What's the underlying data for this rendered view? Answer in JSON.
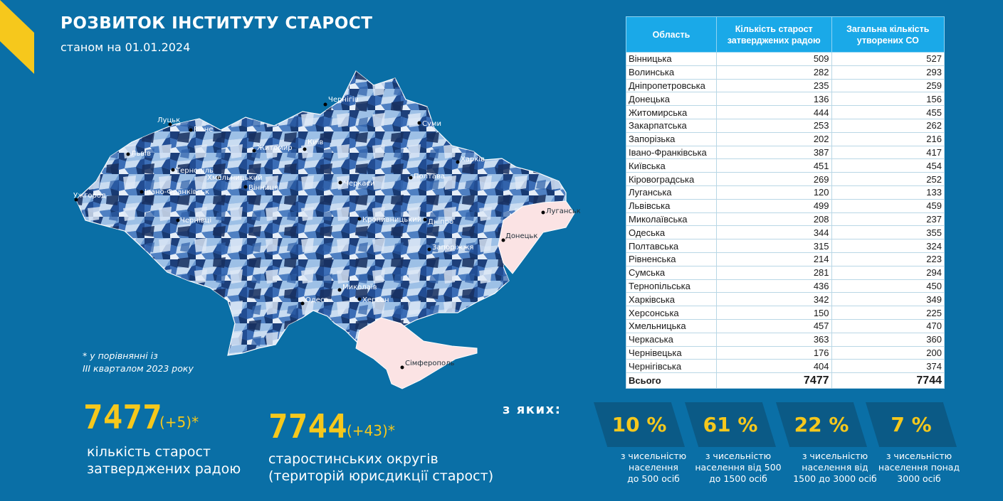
{
  "header": {
    "title": "РОЗВИТОК ІНСТИТУТУ СТАРОСТ",
    "subtitle": "станом на 01.01.2024"
  },
  "colors": {
    "background": "#0a6fa6",
    "accent_yellow": "#f6c81c",
    "table_header": "#1aa9e8",
    "occupied_pink": "#fbe3e4"
  },
  "map": {
    "cities": [
      "Чернігів",
      "Луцьк",
      "Рівне",
      "Суми",
      "Житомир",
      "Київ",
      "Харків",
      "Львів",
      "Тернопіль",
      "Хмельницький",
      "Полтава",
      "Ужгород",
      "Вінниця",
      "Черкаси",
      "Івано-Франківськ",
      "Луганськ",
      "Кропивницький",
      "Дніпро",
      "Чернівці",
      "Донецьк",
      "Запоріжжя",
      "Миколаїв",
      "Одеса",
      "Херсон",
      "Сімферополь"
    ]
  },
  "note": {
    "line1": "* у порівнянні із",
    "line2": "III кварталом 2023 року"
  },
  "stats": {
    "starosts": {
      "value": "7477",
      "delta": "(+5)*",
      "caption1": "кількість старост",
      "caption2": "затверджених радою"
    },
    "okruhy": {
      "value": "7744",
      "delta": "(+43)*",
      "caption1": "старостинських округів",
      "caption2": "(територій юрисдикції старост)"
    }
  },
  "breakdown": {
    "label": "з яких:",
    "items": [
      {
        "pct": "10 %",
        "cap1": "з чисельністю",
        "cap2": "населення",
        "cap3": "до 500 осіб"
      },
      {
        "pct": "61 %",
        "cap1": "з чисельністю",
        "cap2": "населення від 500",
        "cap3": "до 1500 осіб"
      },
      {
        "pct": "22 %",
        "cap1": "з чисельністю",
        "cap2": "населення від",
        "cap3": "1500 до 3000 осіб"
      },
      {
        "pct": "7 %",
        "cap1": "з чисельністю",
        "cap2": "населення понад",
        "cap3": "3000 осіб"
      }
    ]
  },
  "table": {
    "headers": [
      "Область",
      "Кількість старост затверджених радою",
      "Загальна кількість утворених СО"
    ],
    "rows": [
      [
        "Вінницька",
        "509",
        "527"
      ],
      [
        "Волинська",
        "282",
        "293"
      ],
      [
        "Дніпропетровська",
        "235",
        "259"
      ],
      [
        "Донецька",
        "136",
        "156"
      ],
      [
        "Житомирська",
        "444",
        "455"
      ],
      [
        "Закарпатська",
        "253",
        "262"
      ],
      [
        "Запорізька",
        "202",
        "216"
      ],
      [
        "Івано-Франківська",
        "387",
        "417"
      ],
      [
        "Київська",
        "451",
        "454"
      ],
      [
        "Кіровоградська",
        "269",
        "252"
      ],
      [
        "Луганська",
        "120",
        "133"
      ],
      [
        "Львівська",
        "499",
        "459"
      ],
      [
        "Миколаївська",
        "208",
        "237"
      ],
      [
        "Одеська",
        "344",
        "355"
      ],
      [
        "Полтавська",
        "315",
        "324"
      ],
      [
        "Рівненська",
        "214",
        "223"
      ],
      [
        "Сумська",
        "281",
        "294"
      ],
      [
        "Тернопільська",
        "436",
        "450"
      ],
      [
        "Харківська",
        "342",
        "349"
      ],
      [
        "Херсонська",
        "150",
        "225"
      ],
      [
        "Хмельницька",
        "457",
        "470"
      ],
      [
        "Черкаська",
        "363",
        "360"
      ],
      [
        "Чернівецька",
        "176",
        "200"
      ],
      [
        "Чернігівська",
        "404",
        "374"
      ]
    ],
    "total": [
      "Всього",
      "7477",
      "7744"
    ]
  }
}
